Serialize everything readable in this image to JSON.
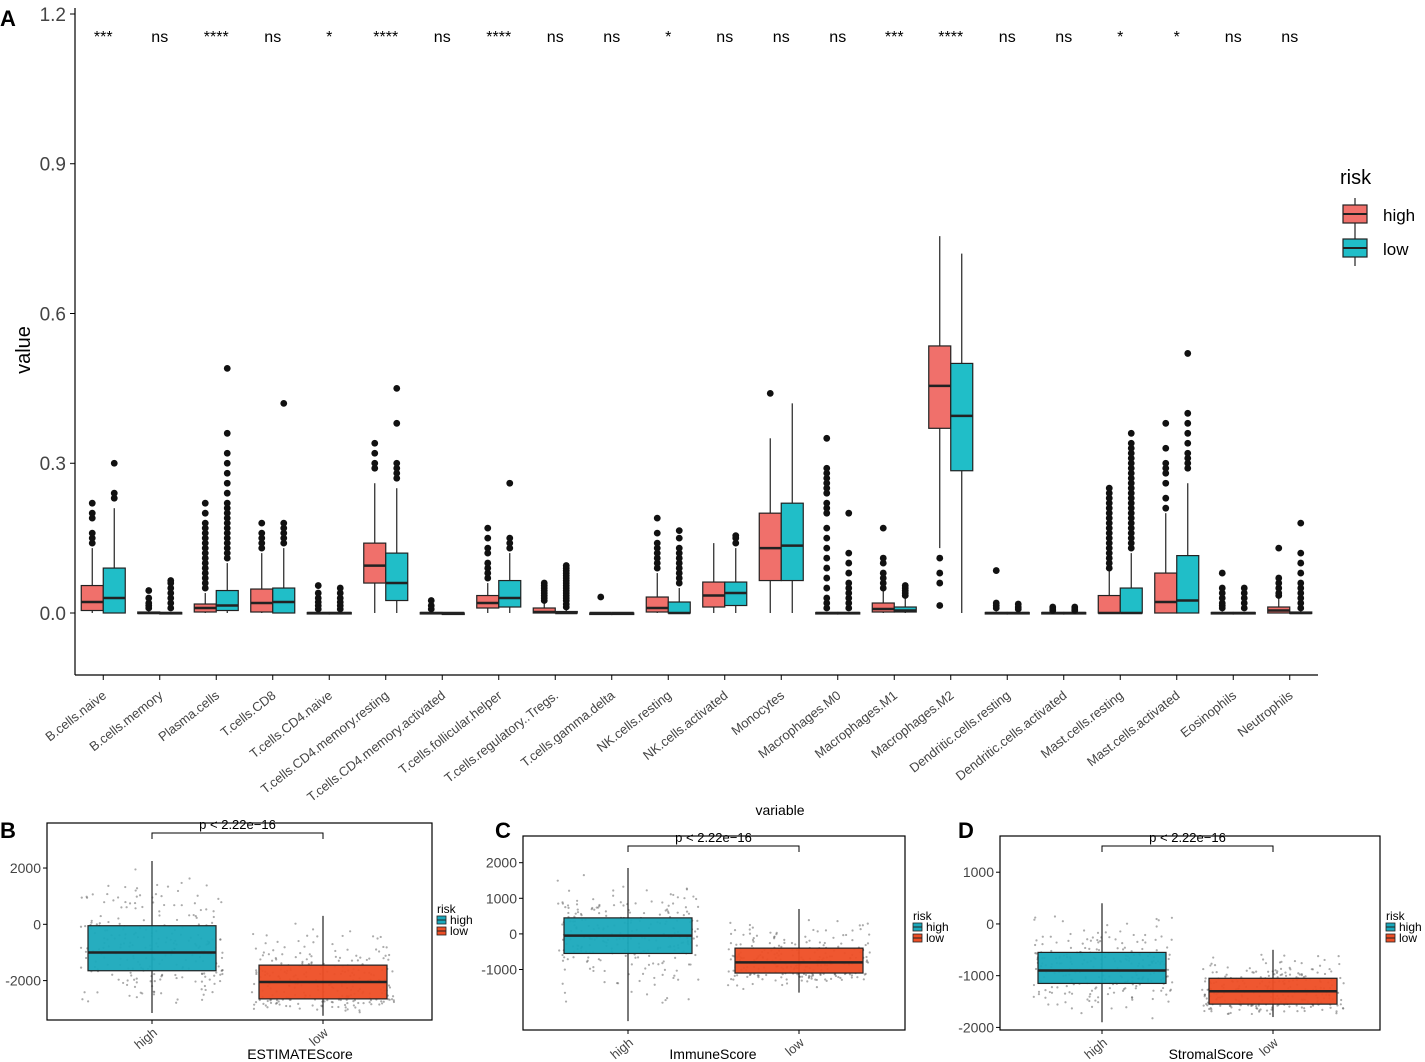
{
  "colors": {
    "A_high": "#F0706B",
    "A_low": "#20BEC8",
    "B_high": "#1AA9BC",
    "B_low": "#EE4E25",
    "axis": "#000000",
    "box_line": "#222222",
    "tick_text": "#444444",
    "jitter": "#666666"
  },
  "panels": {
    "A": {
      "label": "A"
    },
    "B": {
      "label": "B"
    },
    "C": {
      "label": "C"
    },
    "D": {
      "label": "D"
    }
  },
  "chart_data": [
    {
      "id": "A",
      "type": "boxplot",
      "xlabel": "variable",
      "ylabel": "value",
      "ylim": [
        -0.12,
        1.2
      ],
      "yticks": [
        "0.0",
        "0.3",
        "0.6",
        "0.9",
        "1.2"
      ],
      "legend": {
        "title": "risk",
        "entries": [
          "high",
          "low"
        ],
        "position": "right"
      },
      "categories": [
        "B.cells.naive",
        "B.cells.memory",
        "Plasma.cells",
        "T.cells.CD8",
        "T.cells.CD4.naive",
        "T.cells.CD4.memory.resting",
        "T.cells.CD4.memory.activated",
        "T.cells.follicular.helper",
        "T.cells.regulatory..Tregs.",
        "T.cells.gamma.delta",
        "NK.cells.resting",
        "NK.cells.activated",
        "Monocytes",
        "Macrophages.M0",
        "Macrophages.M1",
        "Macrophages.M2",
        "Dendritic.cells.resting",
        "Dendritic.cells.activated",
        "Mast.cells.resting",
        "Mast.cells.activated",
        "Eosinophils",
        "Neutrophils"
      ],
      "significance": [
        "***",
        "ns",
        "****",
        "ns",
        "*",
        "****",
        "ns",
        "****",
        "ns",
        "ns",
        "*",
        "ns",
        "ns",
        "ns",
        "***",
        "****",
        "ns",
        "ns",
        "*",
        "*",
        "ns",
        "ns"
      ],
      "series": [
        {
          "name": "high",
          "boxes": [
            {
              "q1": 0.005,
              "med": 0.022,
              "q3": 0.055,
              "lo": 0.0,
              "hi": 0.13,
              "out": [
                0.14,
                0.15,
                0.16,
                0.19,
                0.2,
                0.22
              ]
            },
            {
              "q1": 0.0,
              "med": 0.0,
              "q3": 0.002,
              "lo": 0.0,
              "hi": 0.005,
              "out": [
                0.01,
                0.015,
                0.02,
                0.03,
                0.045
              ]
            },
            {
              "q1": 0.002,
              "med": 0.01,
              "q3": 0.018,
              "lo": 0.0,
              "hi": 0.04,
              "out": [
                0.05,
                0.06,
                0.07,
                0.08,
                0.09,
                0.1,
                0.11,
                0.12,
                0.13,
                0.14,
                0.15,
                0.16,
                0.17,
                0.18,
                0.2,
                0.22
              ]
            },
            {
              "q1": 0.002,
              "med": 0.02,
              "q3": 0.048,
              "lo": 0.0,
              "hi": 0.12,
              "out": [
                0.13,
                0.14,
                0.15,
                0.16,
                0.18
              ]
            },
            {
              "q1": 0.0,
              "med": 0.0,
              "q3": 0.001,
              "lo": 0.0,
              "hi": 0.003,
              "out": [
                0.008,
                0.015,
                0.022,
                0.03,
                0.04,
                0.055
              ]
            },
            {
              "q1": 0.06,
              "med": 0.095,
              "q3": 0.14,
              "lo": 0.0,
              "hi": 0.26,
              "out": [
                0.29,
                0.3,
                0.32,
                0.34
              ]
            },
            {
              "q1": 0.0,
              "med": 0.0,
              "q3": 0.001,
              "lo": 0.0,
              "hi": 0.002,
              "out": [
                0.008,
                0.015,
                0.025
              ]
            },
            {
              "q1": 0.01,
              "med": 0.02,
              "q3": 0.035,
              "lo": 0.0,
              "hi": 0.06,
              "out": [
                0.07,
                0.08,
                0.09,
                0.1,
                0.12,
                0.13,
                0.15,
                0.17
              ]
            },
            {
              "q1": 0.0,
              "med": 0.002,
              "q3": 0.01,
              "lo": 0.0,
              "hi": 0.02,
              "out": [
                0.025,
                0.03,
                0.035,
                0.04,
                0.045,
                0.05,
                0.055,
                0.06
              ]
            },
            {
              "q1": 0.0,
              "med": 0.0,
              "q3": 0.0,
              "lo": 0.0,
              "hi": 0.001,
              "out": [
                0.032
              ]
            },
            {
              "q1": 0.002,
              "med": 0.01,
              "q3": 0.032,
              "lo": 0.0,
              "hi": 0.08,
              "out": [
                0.09,
                0.1,
                0.11,
                0.12,
                0.13,
                0.14,
                0.16,
                0.19
              ]
            },
            {
              "q1": 0.012,
              "med": 0.035,
              "q3": 0.062,
              "lo": 0.0,
              "hi": 0.14,
              "out": []
            },
            {
              "q1": 0.065,
              "med": 0.13,
              "q3": 0.2,
              "lo": 0.0,
              "hi": 0.35,
              "out": [
                0.44
              ]
            },
            {
              "q1": 0.0,
              "med": 0.0,
              "q3": 0.001,
              "lo": 0.0,
              "hi": 0.002,
              "out": [
                0.01,
                0.02,
                0.03,
                0.05,
                0.07,
                0.09,
                0.11,
                0.13,
                0.15,
                0.17,
                0.2,
                0.21,
                0.22,
                0.24,
                0.25,
                0.26,
                0.27,
                0.28,
                0.29,
                0.35
              ]
            },
            {
              "q1": 0.002,
              "med": 0.008,
              "q3": 0.02,
              "lo": 0.0,
              "hi": 0.045,
              "out": [
                0.05,
                0.06,
                0.07,
                0.08,
                0.1,
                0.11,
                0.17
              ]
            },
            {
              "q1": 0.37,
              "med": 0.455,
              "q3": 0.535,
              "lo": 0.13,
              "hi": 0.755,
              "out": [
                0.015,
                0.06,
                0.08,
                0.11
              ]
            },
            {
              "q1": 0.0,
              "med": 0.0,
              "q3": 0.001,
              "lo": 0.0,
              "hi": 0.003,
              "out": [
                0.01,
                0.015,
                0.02,
                0.085
              ]
            },
            {
              "q1": 0.0,
              "med": 0.0,
              "q3": 0.001,
              "lo": 0.0,
              "hi": 0.002,
              "out": [
                0.005,
                0.008,
                0.012
              ]
            },
            {
              "q1": 0.0,
              "med": 0.0,
              "q3": 0.035,
              "lo": 0.0,
              "hi": 0.085,
              "out": [
                0.09,
                0.1,
                0.11,
                0.12,
                0.13,
                0.14,
                0.15,
                0.16,
                0.17,
                0.18,
                0.19,
                0.2,
                0.21,
                0.22,
                0.23,
                0.24,
                0.25
              ]
            },
            {
              "q1": 0.0,
              "med": 0.022,
              "q3": 0.08,
              "lo": 0.0,
              "hi": 0.2,
              "out": [
                0.21,
                0.23,
                0.26,
                0.28,
                0.29,
                0.3,
                0.33,
                0.38
              ]
            },
            {
              "q1": 0.0,
              "med": 0.0,
              "q3": 0.001,
              "lo": 0.0,
              "hi": 0.003,
              "out": [
                0.01,
                0.015,
                0.02,
                0.03,
                0.04,
                0.05,
                0.08
              ]
            },
            {
              "q1": 0.0,
              "med": 0.005,
              "q3": 0.012,
              "lo": 0.0,
              "hi": 0.03,
              "out": [
                0.035,
                0.04,
                0.05,
                0.06,
                0.07,
                0.13
              ]
            }
          ]
        },
        {
          "name": "low",
          "boxes": [
            {
              "q1": 0.0,
              "med": 0.03,
              "q3": 0.09,
              "lo": 0.0,
              "hi": 0.21,
              "out": [
                0.23,
                0.24,
                0.3
              ]
            },
            {
              "q1": 0.0,
              "med": 0.0,
              "q3": 0.001,
              "lo": 0.0,
              "hi": 0.002,
              "out": [
                0.01,
                0.02,
                0.03,
                0.04,
                0.05,
                0.06,
                0.065
              ]
            },
            {
              "q1": 0.005,
              "med": 0.015,
              "q3": 0.045,
              "lo": 0.0,
              "hi": 0.1,
              "out": [
                0.11,
                0.12,
                0.13,
                0.14,
                0.15,
                0.16,
                0.17,
                0.18,
                0.19,
                0.2,
                0.21,
                0.22,
                0.24,
                0.26,
                0.28,
                0.3,
                0.32,
                0.36,
                0.49
              ]
            },
            {
              "q1": 0.0,
              "med": 0.022,
              "q3": 0.05,
              "lo": 0.0,
              "hi": 0.13,
              "out": [
                0.14,
                0.15,
                0.16,
                0.17,
                0.18,
                0.42
              ]
            },
            {
              "q1": 0.0,
              "med": 0.0,
              "q3": 0.001,
              "lo": 0.0,
              "hi": 0.003,
              "out": [
                0.008,
                0.015,
                0.022,
                0.03,
                0.04,
                0.05
              ]
            },
            {
              "q1": 0.025,
              "med": 0.06,
              "q3": 0.12,
              "lo": 0.0,
              "hi": 0.25,
              "out": [
                0.27,
                0.28,
                0.29,
                0.3,
                0.38,
                0.45
              ]
            },
            {
              "q1": 0.0,
              "med": 0.0,
              "q3": 0.0,
              "lo": 0.0,
              "hi": 0.001,
              "out": []
            },
            {
              "q1": 0.012,
              "med": 0.03,
              "q3": 0.065,
              "lo": 0.0,
              "hi": 0.12,
              "out": [
                0.13,
                0.14,
                0.15,
                0.26
              ]
            },
            {
              "q1": 0.0,
              "med": 0.0,
              "q3": 0.003,
              "lo": 0.0,
              "hi": 0.008,
              "out": [
                0.012,
                0.018,
                0.025,
                0.03,
                0.035,
                0.04,
                0.045,
                0.05,
                0.055,
                0.06,
                0.065,
                0.07,
                0.075,
                0.08,
                0.085,
                0.09,
                0.095
              ]
            },
            {
              "q1": 0.0,
              "med": 0.0,
              "q3": 0.0,
              "lo": 0.0,
              "hi": 0.001,
              "out": []
            },
            {
              "q1": 0.0,
              "med": 0.0,
              "q3": 0.022,
              "lo": 0.0,
              "hi": 0.05,
              "out": [
                0.06,
                0.07,
                0.08,
                0.09,
                0.1,
                0.11,
                0.12,
                0.13,
                0.15,
                0.165
              ]
            },
            {
              "q1": 0.015,
              "med": 0.04,
              "q3": 0.062,
              "lo": 0.0,
              "hi": 0.13,
              "out": [
                0.14,
                0.15,
                0.155
              ]
            },
            {
              "q1": 0.065,
              "med": 0.135,
              "q3": 0.22,
              "lo": 0.0,
              "hi": 0.42,
              "out": []
            },
            {
              "q1": 0.0,
              "med": 0.0,
              "q3": 0.001,
              "lo": 0.0,
              "hi": 0.002,
              "out": [
                0.01,
                0.02,
                0.03,
                0.04,
                0.05,
                0.06,
                0.08,
                0.1,
                0.12,
                0.2
              ]
            },
            {
              "q1": 0.002,
              "med": 0.005,
              "q3": 0.012,
              "lo": 0.0,
              "hi": 0.03,
              "out": [
                0.035,
                0.04,
                0.045,
                0.05,
                0.055
              ]
            },
            {
              "q1": 0.285,
              "med": 0.395,
              "q3": 0.5,
              "lo": 0.0,
              "hi": 0.72,
              "out": []
            },
            {
              "q1": 0.0,
              "med": 0.0,
              "q3": 0.001,
              "lo": 0.0,
              "hi": 0.003,
              "out": [
                0.008,
                0.012,
                0.018
              ]
            },
            {
              "q1": 0.0,
              "med": 0.0,
              "q3": 0.001,
              "lo": 0.0,
              "hi": 0.002,
              "out": [
                0.005,
                0.008,
                0.012
              ]
            },
            {
              "q1": 0.0,
              "med": 0.0,
              "q3": 0.05,
              "lo": 0.0,
              "hi": 0.12,
              "out": [
                0.13,
                0.14,
                0.15,
                0.16,
                0.17,
                0.18,
                0.19,
                0.2,
                0.21,
                0.22,
                0.23,
                0.24,
                0.25,
                0.26,
                0.27,
                0.28,
                0.29,
                0.3,
                0.31,
                0.32,
                0.33,
                0.34,
                0.36
              ]
            },
            {
              "q1": 0.0,
              "med": 0.025,
              "q3": 0.115,
              "lo": 0.0,
              "hi": 0.26,
              "out": [
                0.29,
                0.3,
                0.31,
                0.32,
                0.34,
                0.36,
                0.38,
                0.4,
                0.52
              ]
            },
            {
              "q1": 0.0,
              "med": 0.0,
              "q3": 0.001,
              "lo": 0.0,
              "hi": 0.002,
              "out": [
                0.01,
                0.02,
                0.03,
                0.04,
                0.05
              ]
            },
            {
              "q1": 0.0,
              "med": 0.0,
              "q3": 0.002,
              "lo": 0.0,
              "hi": 0.005,
              "out": [
                0.01,
                0.02,
                0.03,
                0.04,
                0.05,
                0.06,
                0.08,
                0.1,
                0.12,
                0.18
              ]
            }
          ]
        }
      ]
    },
    {
      "id": "B",
      "type": "boxplot",
      "xlabel": "ESTIMATEScore",
      "ylabel": "",
      "ylim": [
        -3400,
        3600
      ],
      "ytick_values": [
        2000,
        0,
        -2000
      ],
      "ytick_labels": [
        "2000",
        "0",
        "-2000"
      ],
      "categories": [
        "high",
        "low"
      ],
      "pvalue": "p < 2.22e−16",
      "legend": {
        "title": "risk",
        "entries": [
          "high",
          "low"
        ],
        "position": "right"
      },
      "boxes": [
        {
          "q1": -1650,
          "med": -1000,
          "q3": -50,
          "lo": -3150,
          "hi": 2250
        },
        {
          "q1": -2650,
          "med": -2050,
          "q3": -1450,
          "lo": -3250,
          "hi": 300
        }
      ]
    },
    {
      "id": "C",
      "type": "boxplot",
      "xlabel": "ImmuneScore",
      "ylabel": "",
      "ylim": [
        -2700,
        2750
      ],
      "ytick_values": [
        2000,
        1000,
        0,
        -1000
      ],
      "ytick_labels": [
        "2000",
        "1000",
        "0",
        "-1000"
      ],
      "categories": [
        "high",
        "low"
      ],
      "pvalue": "p < 2.22e−16",
      "legend": {
        "title": "risk",
        "entries": [
          "high",
          "low"
        ],
        "position": "right"
      },
      "boxes": [
        {
          "q1": -550,
          "med": -50,
          "q3": 450,
          "lo": -2450,
          "hi": 1850
        },
        {
          "q1": -1100,
          "med": -800,
          "q3": -400,
          "lo": -1650,
          "hi": 700
        }
      ]
    },
    {
      "id": "D",
      "type": "boxplot",
      "xlabel": "StromalScore",
      "ylabel": "",
      "ylim": [
        -2050,
        1700
      ],
      "ytick_values": [
        1000,
        0,
        -1000,
        -2000
      ],
      "ytick_labels": [
        "1000",
        "0",
        "-1000",
        "-2000"
      ],
      "categories": [
        "high",
        "low"
      ],
      "pvalue": "p < 2.22e−16",
      "legend": {
        "title": "risk",
        "entries": [
          "high",
          "low"
        ],
        "position": "right"
      },
      "boxes": [
        {
          "q1": -1150,
          "med": -900,
          "q3": -550,
          "lo": -1900,
          "hi": 400
        },
        {
          "q1": -1550,
          "med": -1300,
          "q3": -1050,
          "lo": -1800,
          "hi": -500
        }
      ]
    }
  ]
}
